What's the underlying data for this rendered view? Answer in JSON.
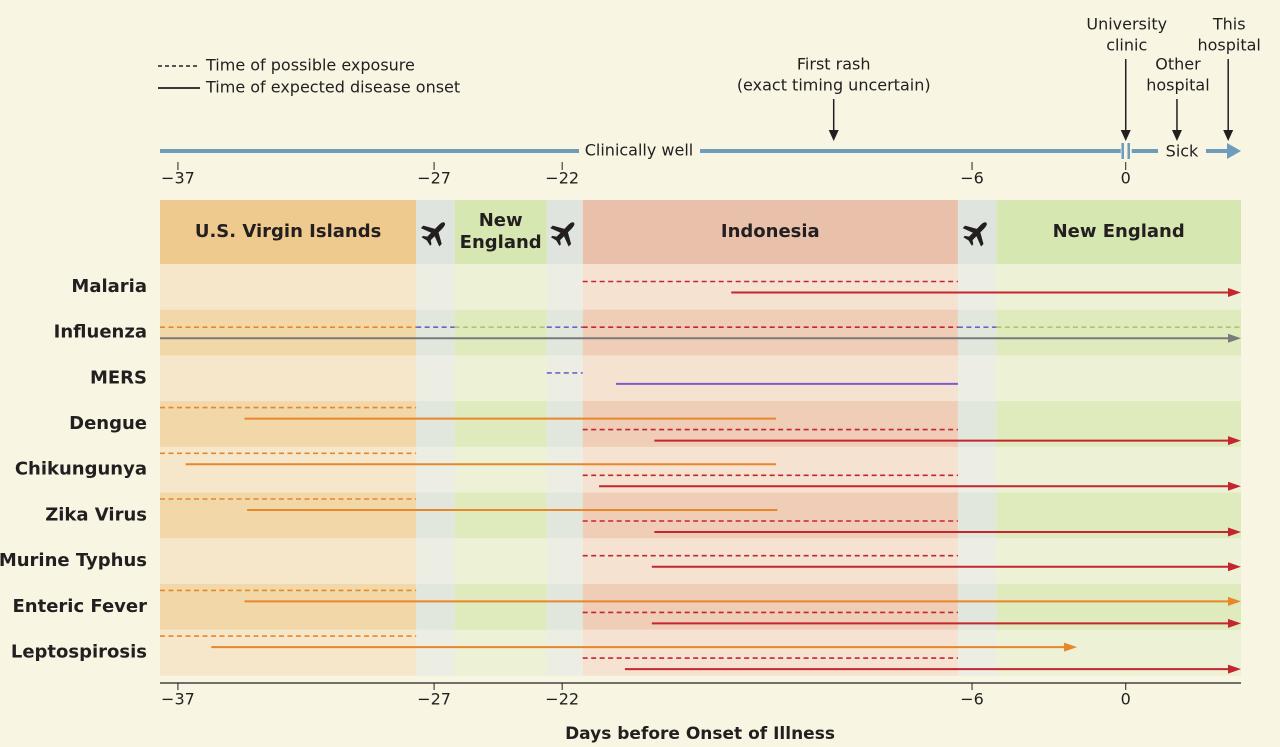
{
  "legend": {
    "exposure": "Time of possible exposure",
    "onset": "Time of expected disease onset"
  },
  "axis": {
    "label": "Days before Onset of Illness",
    "xlim": [
      -37.7,
      4.5
    ],
    "xticks": [
      {
        "value": -37,
        "label": "−37"
      },
      {
        "value": -27,
        "label": "−27"
      },
      {
        "value": -22,
        "label": "−22"
      },
      {
        "value": -6,
        "label": "−6"
      },
      0
    ]
  },
  "status": {
    "well": "Clinically well",
    "sick": "Sick",
    "color": "#6f9cbb"
  },
  "events": [
    {
      "label": [
        "First rash",
        "(exact timing uncertain)"
      ],
      "day": -11.4
    },
    {
      "label": [
        "University",
        "clinic"
      ],
      "day": 0
    },
    {
      "label": [
        "Other",
        "hospital"
      ],
      "day": 2
    },
    {
      "label": [
        "This",
        "hospital"
      ],
      "day": 4
    }
  ],
  "places": [
    {
      "label": [
        "U.S. Virgin Islands"
      ],
      "start": -37.7,
      "end": -27.7,
      "color": "#efca8e",
      "tint": "#f6e7cb",
      "tint_alt": "#f2d8a9"
    },
    {
      "label": [
        "New",
        "England"
      ],
      "start": -26.2,
      "end": -22.6,
      "color": "#d7e7b1",
      "tint": "#edf1d6",
      "tint_alt": "#dfeabd"
    },
    {
      "label": [
        "Indonesia"
      ],
      "start": -21.2,
      "end": -6.55,
      "color": "#e9c1aa",
      "tint": "#f5e2d1",
      "tint_alt": "#efcdb7"
    },
    {
      "label": [
        "New England"
      ],
      "start": -5.05,
      "end": 4.5,
      "color": "#d7e7b1",
      "tint": "#edf1d6",
      "tint_alt": "#dfeabd"
    }
  ],
  "flights": {
    "color": "#dfe5de",
    "tint": "#eceee3",
    "tint_alt": "#e1e7dc",
    "spans": [
      [
        -27.7,
        -26.2
      ],
      [
        -22.6,
        -21.2
      ],
      [
        -6.55,
        -5.05
      ]
    ]
  },
  "diseases": [
    {
      "name": "Malaria",
      "lines": [
        {
          "style": "exposure",
          "segments": [
            {
              "start": -21.2,
              "end": -6.55,
              "color": "#c4262e"
            }
          ]
        },
        {
          "style": "onset",
          "arrow": true,
          "segments": [
            {
              "start": -15.4,
              "end": 4.5,
              "color": "#c4262e"
            }
          ]
        }
      ]
    },
    {
      "name": "Influenza",
      "lines": [
        {
          "style": "exposure",
          "segments": [
            {
              "start": -37.7,
              "end": -27.7,
              "color": "#e8862a"
            },
            {
              "start": -27.7,
              "end": -26.2,
              "color": "#6a63c8"
            },
            {
              "start": -26.2,
              "end": -22.6,
              "color": "#a8c86e"
            },
            {
              "start": -22.6,
              "end": -21.2,
              "color": "#6a63c8"
            },
            {
              "start": -21.2,
              "end": -6.55,
              "color": "#c4262e"
            },
            {
              "start": -6.55,
              "end": -5.05,
              "color": "#6a63c8"
            },
            {
              "start": -5.05,
              "end": 4.5,
              "color": "#a8c86e"
            }
          ]
        },
        {
          "style": "onset",
          "arrow": true,
          "segments": [
            {
              "start": -37.7,
              "end": 4.5,
              "color": "#7a7a7a"
            }
          ]
        }
      ]
    },
    {
      "name": "MERS",
      "lines": [
        {
          "style": "exposure",
          "segments": [
            {
              "start": -22.6,
              "end": -21.2,
              "color": "#6a63c8"
            }
          ]
        },
        {
          "style": "onset",
          "arrow": false,
          "segments": [
            {
              "start": -19.9,
              "end": -6.55,
              "color": "#7a5ccc"
            }
          ]
        }
      ]
    },
    {
      "name": "Dengue",
      "lines": [
        {
          "style": "exposure",
          "segments": [
            {
              "start": -37.7,
              "end": -27.7,
              "color": "#e8862a"
            }
          ]
        },
        {
          "style": "onset",
          "arrow": false,
          "segments": [
            {
              "start": -34.4,
              "end": -13.65,
              "color": "#e8862a"
            }
          ]
        },
        {
          "style": "exposure",
          "segments": [
            {
              "start": -21.2,
              "end": -6.55,
              "color": "#c4262e"
            }
          ]
        },
        {
          "style": "onset",
          "arrow": true,
          "segments": [
            {
              "start": -18.4,
              "end": 4.5,
              "color": "#c4262e"
            }
          ]
        }
      ]
    },
    {
      "name": "Chikungunya",
      "lines": [
        {
          "style": "exposure",
          "segments": [
            {
              "start": -37.7,
              "end": -27.7,
              "color": "#e8862a"
            }
          ]
        },
        {
          "style": "onset",
          "arrow": false,
          "segments": [
            {
              "start": -36.7,
              "end": -13.65,
              "color": "#e8862a"
            }
          ]
        },
        {
          "style": "exposure",
          "segments": [
            {
              "start": -21.2,
              "end": -6.55,
              "color": "#c4262e"
            }
          ]
        },
        {
          "style": "onset",
          "arrow": true,
          "segments": [
            {
              "start": -20.56,
              "end": 4.5,
              "color": "#c4262e"
            }
          ]
        }
      ]
    },
    {
      "name": "Zika Virus",
      "lines": [
        {
          "style": "exposure",
          "segments": [
            {
              "start": -37.7,
              "end": -27.7,
              "color": "#e8862a"
            }
          ]
        },
        {
          "style": "onset",
          "arrow": false,
          "segments": [
            {
              "start": -34.3,
              "end": -13.6,
              "color": "#e8862a"
            }
          ]
        },
        {
          "style": "exposure",
          "segments": [
            {
              "start": -21.2,
              "end": -6.55,
              "color": "#c4262e"
            }
          ]
        },
        {
          "style": "onset",
          "arrow": true,
          "segments": [
            {
              "start": -18.4,
              "end": 4.5,
              "color": "#c4262e"
            }
          ]
        }
      ]
    },
    {
      "name": "Murine Typhus",
      "lines": [
        {
          "style": "exposure",
          "segments": [
            {
              "start": -21.2,
              "end": -6.55,
              "color": "#c4262e"
            }
          ]
        },
        {
          "style": "onset",
          "arrow": true,
          "segments": [
            {
              "start": -18.5,
              "end": 4.5,
              "color": "#c4262e"
            }
          ]
        }
      ]
    },
    {
      "name": "Enteric Fever",
      "lines": [
        {
          "style": "exposure",
          "segments": [
            {
              "start": -37.7,
              "end": -27.7,
              "color": "#e8862a"
            }
          ]
        },
        {
          "style": "onset",
          "arrow": true,
          "segments": [
            {
              "start": -34.4,
              "end": 4.5,
              "color": "#e8862a"
            }
          ]
        },
        {
          "style": "exposure",
          "segments": [
            {
              "start": -21.2,
              "end": -6.55,
              "color": "#c4262e"
            }
          ]
        },
        {
          "style": "onset",
          "arrow": true,
          "segments": [
            {
              "start": -18.5,
              "end": 4.5,
              "color": "#c4262e"
            }
          ]
        }
      ]
    },
    {
      "name": "Leptospirosis",
      "lines": [
        {
          "style": "exposure",
          "segments": [
            {
              "start": -37.7,
              "end": -27.7,
              "color": "#e8862a"
            }
          ]
        },
        {
          "style": "onset",
          "arrow": true,
          "segments": [
            {
              "start": -35.7,
              "end": -1.9,
              "color": "#e8862a"
            }
          ]
        },
        {
          "style": "exposure",
          "segments": [
            {
              "start": -21.2,
              "end": -6.55,
              "color": "#c4262e"
            }
          ]
        },
        {
          "style": "onset",
          "arrow": true,
          "segments": [
            {
              "start": -19.55,
              "end": 4.5,
              "color": "#c4262e"
            }
          ]
        }
      ]
    }
  ]
}
